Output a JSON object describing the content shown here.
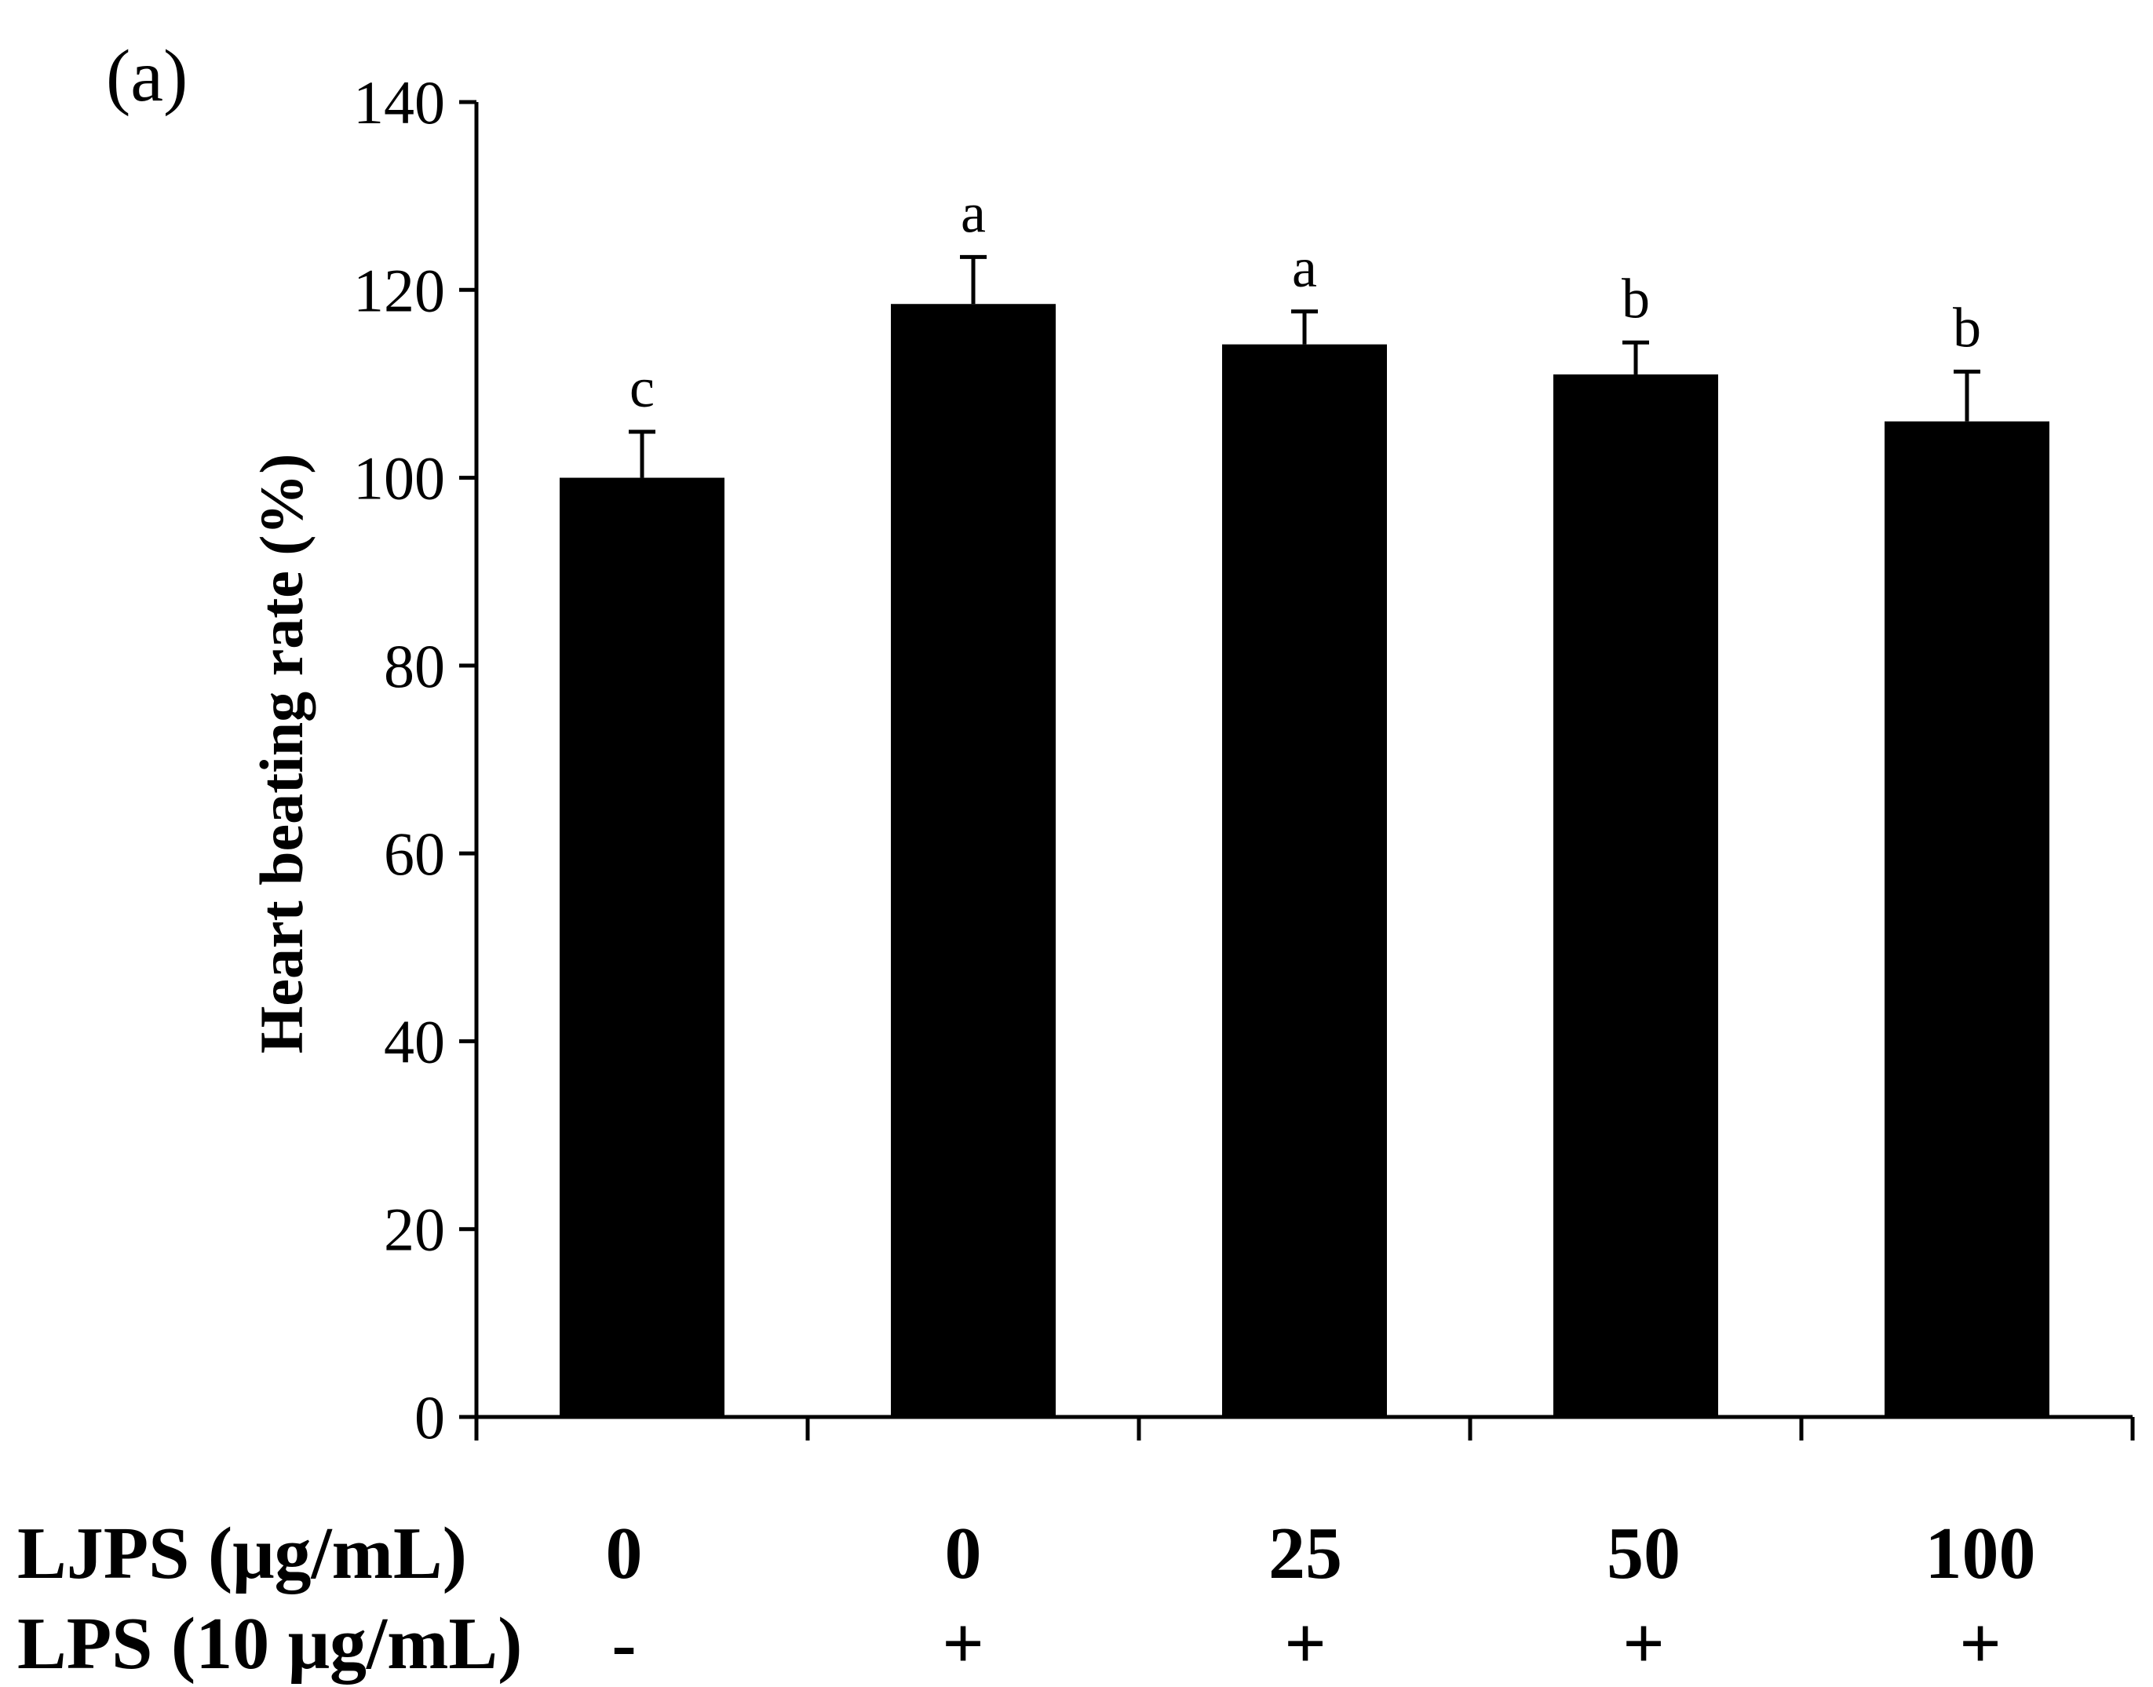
{
  "panel_label": "(a)",
  "chart_data": {
    "type": "bar",
    "ylabel": "Heart beating rate (%)",
    "xlabel": "",
    "ylim": [
      0,
      140
    ],
    "yticks": [
      0,
      20,
      40,
      60,
      80,
      100,
      120,
      140
    ],
    "grid": false,
    "legend": "none",
    "bar_color": "#000000",
    "values": [
      100,
      118.5,
      114.2,
      111.0,
      106.0
    ],
    "errors": [
      4.9,
      5.0,
      3.5,
      3.4,
      5.3
    ],
    "significance_letters": [
      "c",
      "a",
      "a",
      "b",
      "b"
    ]
  },
  "treatment_table": {
    "rows": [
      {
        "label": "LJPS (μg/mL)",
        "values": [
          "0",
          "0",
          "25",
          "50",
          "100"
        ]
      },
      {
        "label": "LPS (10 μg/mL)",
        "values": [
          "-",
          "+",
          "+",
          "+",
          "+"
        ]
      }
    ]
  }
}
